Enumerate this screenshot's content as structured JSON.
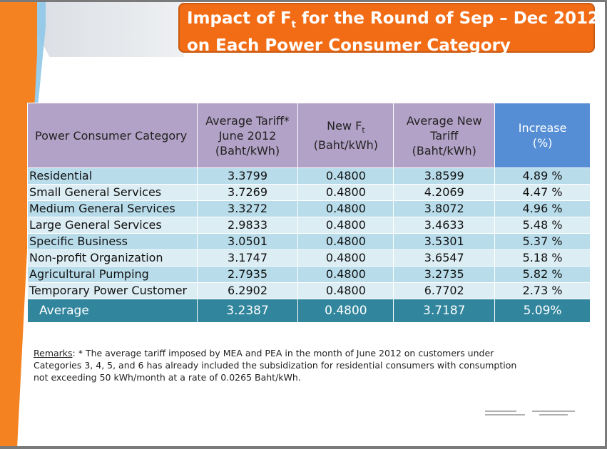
{
  "title": {
    "line1_pre": "Impact of F",
    "line1_sub": "t",
    "line1_post": " for the Round of Sep – Dec 2012",
    "line2": "on Each Power Consumer Category"
  },
  "table": {
    "headers": {
      "category": "Power Consumer Category",
      "avg_tariff_l1": "Average Tariff*",
      "avg_tariff_l2": "June 2012",
      "avg_tariff_l3": "(Baht/kWh)",
      "new_ft_l1_pre": "New F",
      "new_ft_l1_sub": "t",
      "new_ft_l2": "(Baht/kWh)",
      "avg_new_l1": "Average New",
      "avg_new_l2": "Tariff",
      "avg_new_l3": "(Baht/kWh)",
      "increase_l1": "Increase",
      "increase_l2": "(%)"
    },
    "rows": [
      {
        "category": "Residential",
        "avg_tariff": "3.3799",
        "new_ft": "0.4800",
        "avg_new": "3.8599",
        "increase": "4.89 %"
      },
      {
        "category": "Small General Services",
        "avg_tariff": "3.7269",
        "new_ft": "0.4800",
        "avg_new": "4.2069",
        "increase": "4.47 %"
      },
      {
        "category": "Medium General Services",
        "avg_tariff": "3.3272",
        "new_ft": "0.4800",
        "avg_new": "3.8072",
        "increase": "4.96 %"
      },
      {
        "category": "Large General Services",
        "avg_tariff": "2.9833",
        "new_ft": "0.4800",
        "avg_new": "3.4633",
        "increase": "5.48 %"
      },
      {
        "category": "Specific Business",
        "avg_tariff": "3.0501",
        "new_ft": "0.4800",
        "avg_new": "3.5301",
        "increase": "5.37 %"
      },
      {
        "category": "Non-profit Organization",
        "avg_tariff": "3.1747",
        "new_ft": "0.4800",
        "avg_new": "3.6547",
        "increase": "5.18 %"
      },
      {
        "category": "Agricultural Pumping",
        "avg_tariff": "2.7935",
        "new_ft": "0.4800",
        "avg_new": "3.2735",
        "increase": "5.82 %"
      },
      {
        "category": "Temporary Power Customer",
        "avg_tariff": "6.2902",
        "new_ft": "0.4800",
        "avg_new": "6.7702",
        "increase": "2.73 %"
      }
    ],
    "average": {
      "category": "Average",
      "avg_tariff": "3.2387",
      "new_ft": "0.4800",
      "avg_new": "3.7187",
      "increase": "5.09%"
    }
  },
  "remarks": {
    "label": "Remarks",
    "line1": ": * The average tariff imposed by MEA and PEA in the month of June 2012 on customers under",
    "line2": "Categories 3, 4, 5, and 6 has already included the subsidization for residential consumers with consumption",
    "line3": "not exceeding 50 kWh/month at a rate of 0.0265 Baht/kWh."
  },
  "colors": {
    "title_bg": "#f26c16",
    "header_bg": "#b3a2c7",
    "increase_header_bg": "#558ed5",
    "row_dark": "#b8dcea",
    "row_light": "#dcedf4",
    "average_bg": "#31859c"
  }
}
